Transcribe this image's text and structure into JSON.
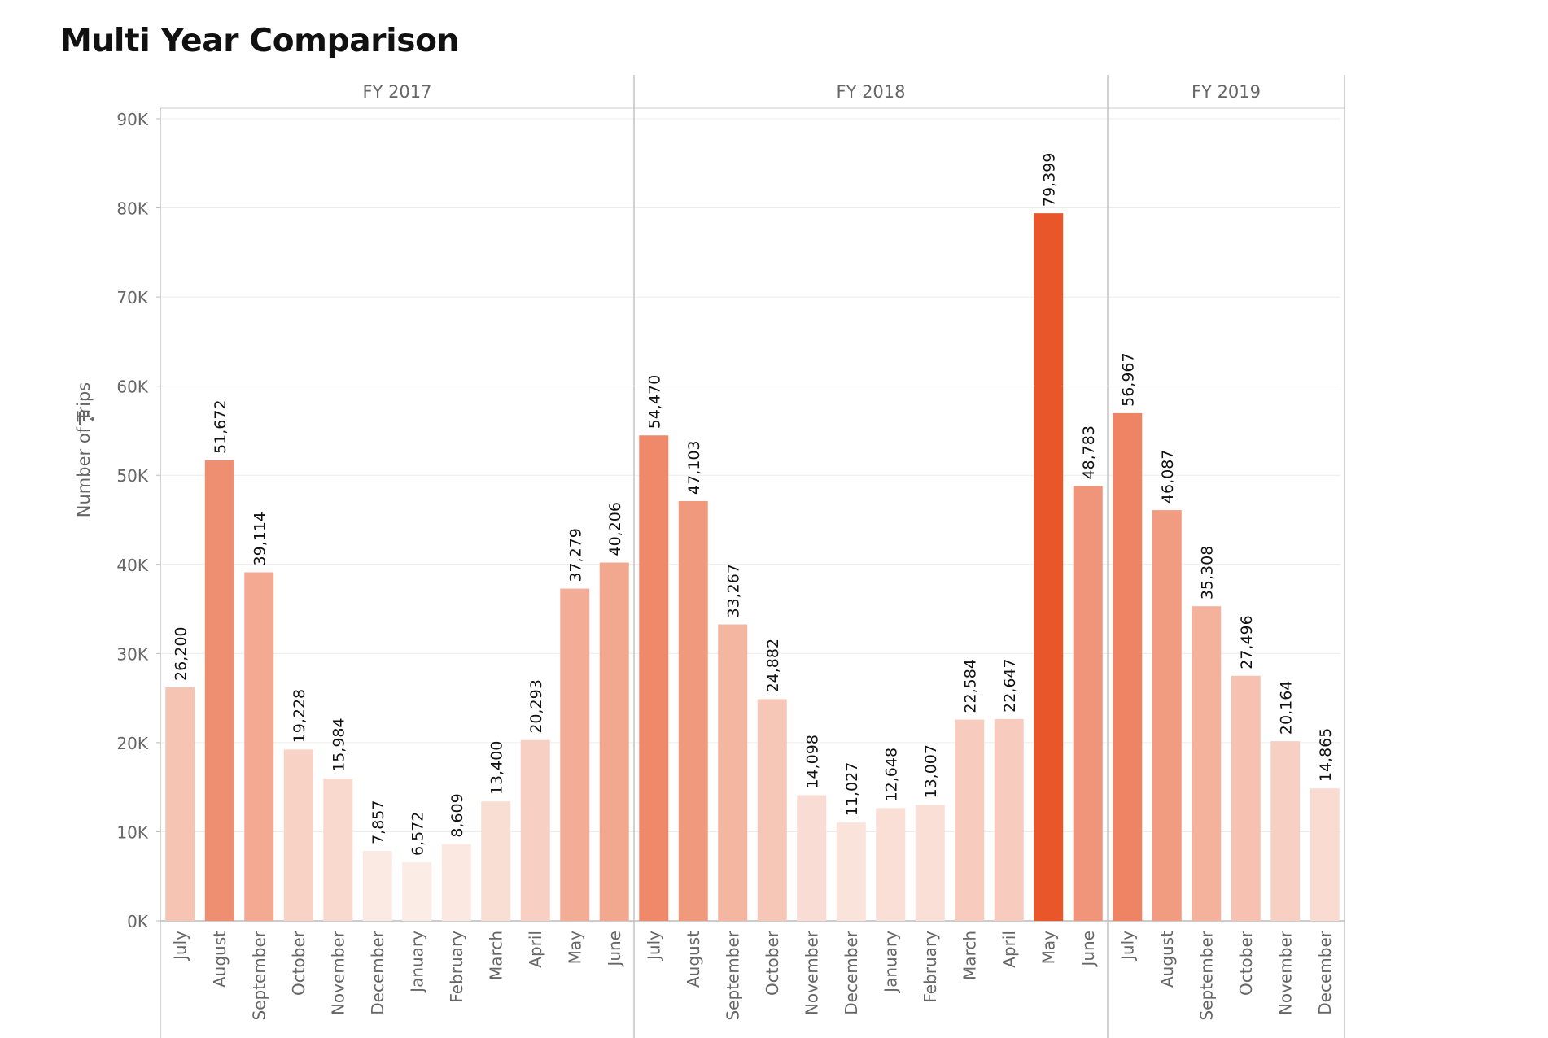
{
  "title": "Multi Year Comparison",
  "chart_data": {
    "type": "bar",
    "title": "Multi Year Comparison",
    "ylabel": "Number of Trips",
    "xlabel": "",
    "ylim": [
      0,
      90000
    ],
    "yticks": [
      {
        "value": 0,
        "label": "0K"
      },
      {
        "value": 10000,
        "label": "10K"
      },
      {
        "value": 20000,
        "label": "20K"
      },
      {
        "value": 30000,
        "label": "30K"
      },
      {
        "value": 40000,
        "label": "40K"
      },
      {
        "value": 50000,
        "label": "50K"
      },
      {
        "value": 60000,
        "label": "60K"
      },
      {
        "value": 70000,
        "label": "70K"
      },
      {
        "value": 80000,
        "label": "80K"
      },
      {
        "value": 90000,
        "label": "90K"
      }
    ],
    "grid": true,
    "color_scale": {
      "low": "#fbece6",
      "high": "#e8562a",
      "min": 6572,
      "max": 79399
    },
    "panels": [
      {
        "label": "FY 2017",
        "categories": [
          "July",
          "August",
          "September",
          "October",
          "November",
          "December",
          "January",
          "February",
          "March",
          "April",
          "May",
          "June"
        ],
        "values": [
          26200,
          51672,
          39114,
          19228,
          15984,
          7857,
          6572,
          8609,
          13400,
          20293,
          37279,
          40206
        ],
        "value_labels": [
          "26,200",
          "51,672",
          "39,114",
          "19,228",
          "15,984",
          "7,857",
          "6,572",
          "8,609",
          "13,400",
          "20,293",
          "37,279",
          "40,206"
        ]
      },
      {
        "label": "FY 2018",
        "categories": [
          "July",
          "August",
          "September",
          "October",
          "November",
          "December",
          "January",
          "February",
          "March",
          "April",
          "May",
          "June"
        ],
        "values": [
          54470,
          47103,
          33267,
          24882,
          14098,
          11027,
          12648,
          13007,
          22584,
          22647,
          79399,
          48783
        ],
        "value_labels": [
          "54,470",
          "47,103",
          "33,267",
          "24,882",
          "14,098",
          "11,027",
          "12,648",
          "13,007",
          "22,584",
          "22,647",
          "79,399",
          "48,783"
        ]
      },
      {
        "label": "FY 2019",
        "categories": [
          "July",
          "August",
          "September",
          "October",
          "November",
          "December"
        ],
        "values": [
          56967,
          46087,
          35308,
          27496,
          20164,
          14865
        ],
        "value_labels": [
          "56,967",
          "46,087",
          "35,308",
          "27,496",
          "20,164",
          "14,865"
        ]
      }
    ]
  }
}
